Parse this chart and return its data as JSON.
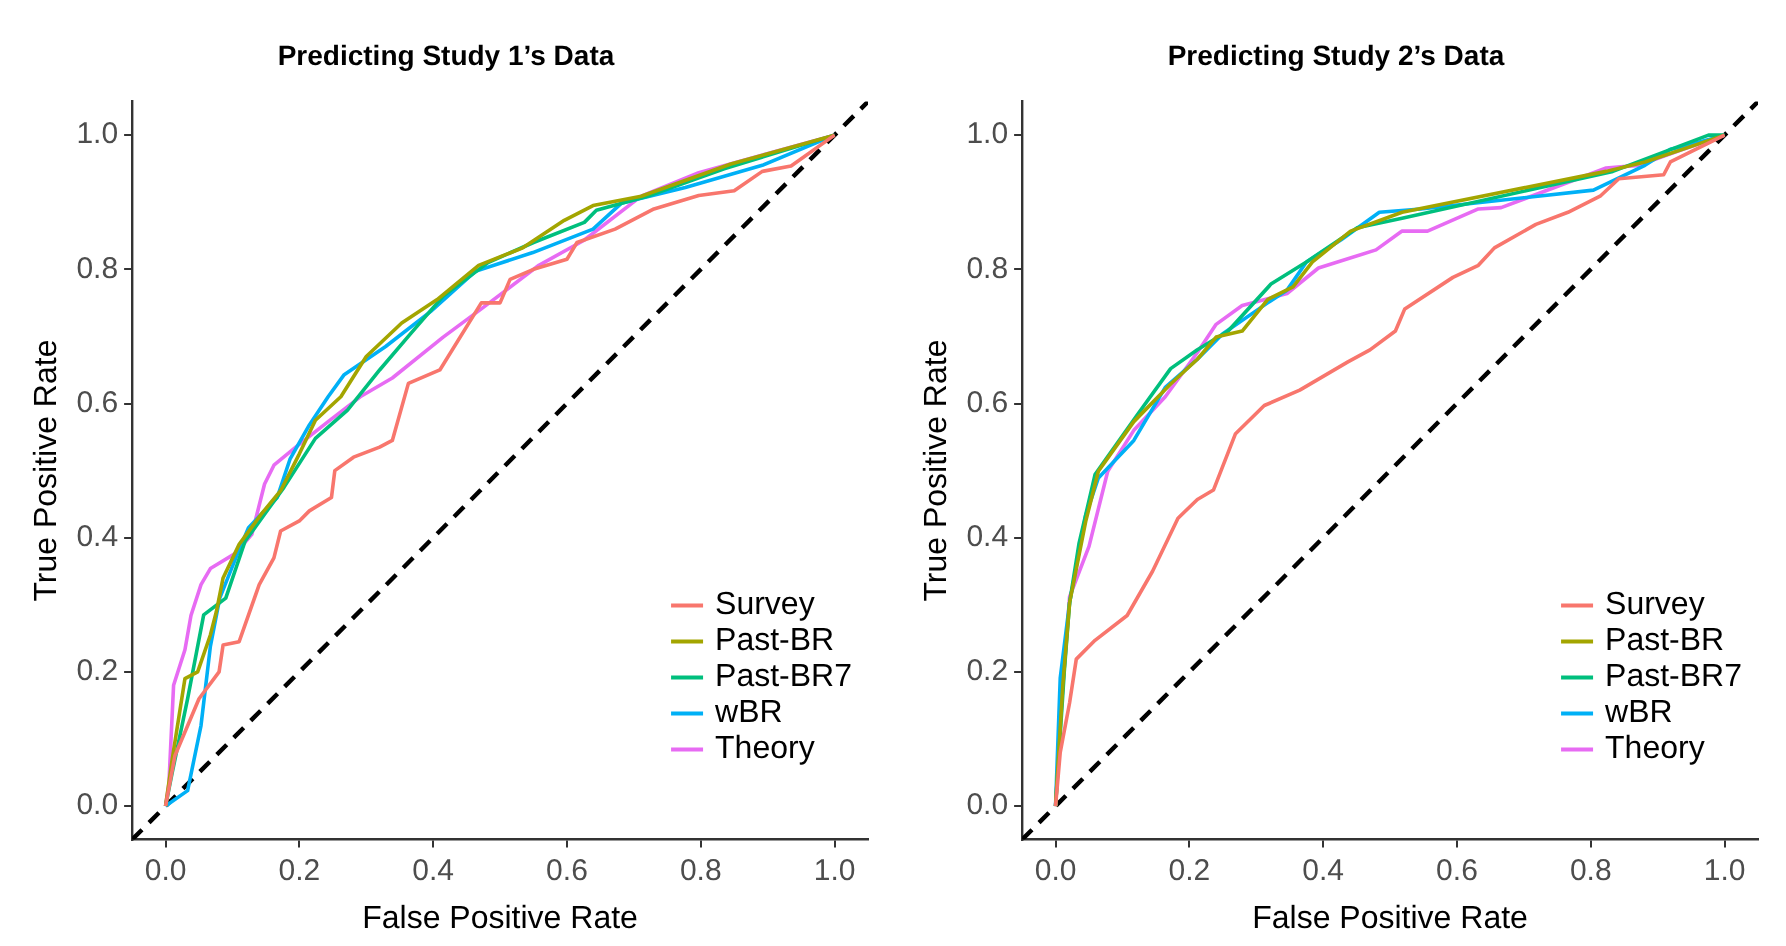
{
  "chart_data": [
    {
      "type": "line",
      "title": "Predicting Study 1’s Data",
      "xlabel": "False Positive Rate",
      "ylabel": "True Positive Rate",
      "xlim": [
        -0.05,
        1.05
      ],
      "ylim": [
        -0.05,
        1.05
      ],
      "xticks": [
        {
          "value": 0,
          "label": "0.0"
        },
        {
          "value": 0.2,
          "label": "0.2"
        },
        {
          "value": 0.4,
          "label": "0.4"
        },
        {
          "value": 0.6,
          "label": "0.6"
        },
        {
          "value": 0.8,
          "label": "0.8"
        },
        {
          "value": 1,
          "label": "1.0"
        }
      ],
      "yticks": [
        {
          "value": 0,
          "label": "0.0"
        },
        {
          "value": 0.2,
          "label": "0.2"
        },
        {
          "value": 0.4,
          "label": "0.4"
        },
        {
          "value": 0.6,
          "label": "0.6"
        },
        {
          "value": 0.8,
          "label": "0.8"
        },
        {
          "value": 1,
          "label": "1.0"
        }
      ],
      "grid": false,
      "legend": "bottom right",
      "marker": "none",
      "line_style": "solid",
      "series": [
        {
          "name": "Survey",
          "color": "#f8766d",
          "x": [
            0,
            0.014,
            0.05,
            0.08,
            0.086,
            0.11,
            0.14,
            0.162,
            0.172,
            0.2,
            0.215,
            0.248,
            0.253,
            0.281,
            0.32,
            0.339,
            0.363,
            0.41,
            0.472,
            0.5,
            0.515,
            0.55,
            0.6,
            0.615,
            0.672,
            0.73,
            0.797,
            0.85,
            0.892,
            0.935,
            1
          ],
          "values": [
            0,
            0.075,
            0.16,
            0.2,
            0.24,
            0.245,
            0.33,
            0.37,
            0.41,
            0.425,
            0.44,
            0.46,
            0.5,
            0.52,
            0.535,
            0.545,
            0.63,
            0.65,
            0.75,
            0.75,
            0.785,
            0.8,
            0.815,
            0.84,
            0.86,
            0.89,
            0.91,
            0.917,
            0.946,
            0.954,
            1
          ]
        },
        {
          "name": "Past-BR",
          "color": "#a3a500",
          "x": [
            0,
            0.01,
            0.029,
            0.048,
            0.067,
            0.076,
            0.086,
            0.11,
            0.143,
            0.172,
            0.2,
            0.224,
            0.262,
            0.3,
            0.353,
            0.406,
            0.468,
            0.534,
            0.596,
            0.639,
            0.711,
            0.845,
            1
          ],
          "values": [
            0,
            0.07,
            0.19,
            0.2,
            0.255,
            0.29,
            0.34,
            0.39,
            0.435,
            0.47,
            0.525,
            0.575,
            0.61,
            0.67,
            0.72,
            0.755,
            0.806,
            0.832,
            0.873,
            0.895,
            0.909,
            0.957,
            1
          ]
        },
        {
          "name": "Past-BR7",
          "color": "#00bf7d",
          "x": [
            0,
            0.01,
            0.033,
            0.057,
            0.09,
            0.119,
            0.148,
            0.177,
            0.224,
            0.272,
            0.32,
            0.367,
            0.415,
            0.482,
            0.55,
            0.626,
            0.644,
            0.72,
            0.835,
            1
          ],
          "values": [
            0,
            0.05,
            0.16,
            0.285,
            0.31,
            0.395,
            0.435,
            0.475,
            0.548,
            0.59,
            0.65,
            0.705,
            0.76,
            0.81,
            0.84,
            0.87,
            0.888,
            0.909,
            0.95,
            1
          ]
        },
        {
          "name": "wBR",
          "color": "#00b0f6",
          "x": [
            0,
            0.033,
            0.053,
            0.067,
            0.081,
            0.105,
            0.124,
            0.167,
            0.186,
            0.215,
            0.243,
            0.267,
            0.329,
            0.396,
            0.463,
            0.549,
            0.639,
            0.682,
            0.777,
            0.892,
            1
          ],
          "values": [
            0,
            0.023,
            0.12,
            0.238,
            0.31,
            0.37,
            0.415,
            0.46,
            0.517,
            0.568,
            0.61,
            0.643,
            0.685,
            0.737,
            0.797,
            0.825,
            0.86,
            0.899,
            0.922,
            0.955,
            1
          ]
        },
        {
          "name": "Theory",
          "color": "#e76bf3",
          "x": [
            0,
            0.005,
            0.012,
            0.029,
            0.038,
            0.053,
            0.067,
            0.105,
            0.129,
            0.148,
            0.162,
            0.196,
            0.243,
            0.291,
            0.339,
            0.415,
            0.472,
            0.558,
            0.625,
            0.711,
            0.797,
            1
          ],
          "values": [
            0,
            0.033,
            0.18,
            0.233,
            0.284,
            0.33,
            0.354,
            0.377,
            0.405,
            0.48,
            0.508,
            0.536,
            0.573,
            0.61,
            0.638,
            0.699,
            0.741,
            0.806,
            0.843,
            0.909,
            0.944,
            1
          ]
        },
        {
          "color": "#000000",
          "line_style": "dashed",
          "x": [
            -0.05,
            1.05
          ],
          "values": [
            -0.05,
            1.05
          ]
        }
      ]
    },
    {
      "type": "line",
      "title": "Predicting Study 2’s Data",
      "xlabel": "False Positive Rate",
      "ylabel": "True Positive Rate",
      "xlim": [
        -0.05,
        1.05
      ],
      "ylim": [
        -0.05,
        1.05
      ],
      "xticks": [
        {
          "value": 0,
          "label": "0.0"
        },
        {
          "value": 0.2,
          "label": "0.2"
        },
        {
          "value": 0.4,
          "label": "0.4"
        },
        {
          "value": 0.6,
          "label": "0.6"
        },
        {
          "value": 0.8,
          "label": "0.8"
        },
        {
          "value": 1,
          "label": "1.0"
        }
      ],
      "yticks": [
        {
          "value": 0,
          "label": "0.0"
        },
        {
          "value": 0.2,
          "label": "0.2"
        },
        {
          "value": 0.4,
          "label": "0.4"
        },
        {
          "value": 0.6,
          "label": "0.6"
        },
        {
          "value": 0.8,
          "label": "0.8"
        },
        {
          "value": 1,
          "label": "1.0"
        }
      ],
      "grid": false,
      "legend": "bottom right",
      "marker": "none",
      "line_style": "solid",
      "series": [
        {
          "name": "Survey",
          "color": "#f8766d",
          "x": [
            0,
            0.007,
            0.021,
            0.031,
            0.059,
            0.107,
            0.145,
            0.183,
            0.212,
            0.236,
            0.269,
            0.312,
            0.365,
            0.437,
            0.47,
            0.508,
            0.522,
            0.594,
            0.632,
            0.656,
            0.718,
            0.766,
            0.814,
            0.842,
            0.909,
            0.919,
            1
          ],
          "values": [
            0,
            0.08,
            0.154,
            0.219,
            0.247,
            0.284,
            0.35,
            0.429,
            0.457,
            0.471,
            0.555,
            0.597,
            0.62,
            0.662,
            0.68,
            0.708,
            0.741,
            0.788,
            0.806,
            0.832,
            0.867,
            0.885,
            0.909,
            0.935,
            0.941,
            0.96,
            1
          ]
        },
        {
          "name": "Past-BR",
          "color": "#a3a500",
          "x": [
            0,
            0.011,
            0.021,
            0.045,
            0.064,
            0.117,
            0.172,
            0.212,
            0.24,
            0.279,
            0.317,
            0.355,
            0.384,
            0.441,
            0.518,
            0.823,
            0.881,
            1
          ],
          "values": [
            0,
            0.182,
            0.303,
            0.424,
            0.499,
            0.573,
            0.629,
            0.666,
            0.699,
            0.708,
            0.755,
            0.774,
            0.811,
            0.857,
            0.885,
            0.946,
            0.96,
            1
          ]
        },
        {
          "name": "Past-BR7",
          "color": "#00bf7d",
          "x": [
            0,
            0.013,
            0.021,
            0.035,
            0.059,
            0.122,
            0.172,
            0.212,
            0.258,
            0.322,
            0.375,
            0.451,
            0.518,
            0.833,
            0.976,
            1
          ],
          "values": [
            0,
            0.2,
            0.303,
            0.391,
            0.494,
            0.583,
            0.652,
            0.68,
            0.708,
            0.778,
            0.811,
            0.862,
            0.876,
            0.946,
            1,
            1
          ]
        },
        {
          "name": "wBR",
          "color": "#00b0f6",
          "x": [
            0,
            0.007,
            0.021,
            0.045,
            0.064,
            0.117,
            0.164,
            0.212,
            0.25,
            0.317,
            0.346,
            0.375,
            0.427,
            0.484,
            0.546,
            0.804,
            0.881,
            0.919,
            0.938,
            1
          ],
          "values": [
            0,
            0.191,
            0.303,
            0.433,
            0.489,
            0.545,
            0.624,
            0.666,
            0.704,
            0.75,
            0.769,
            0.811,
            0.844,
            0.885,
            0.89,
            0.918,
            0.955,
            0.979,
            0.983,
            1
          ]
        },
        {
          "name": "Theory",
          "color": "#e76bf3",
          "x": [
            0,
            0.007,
            0.021,
            0.05,
            0.078,
            0.117,
            0.164,
            0.212,
            0.24,
            0.279,
            0.346,
            0.393,
            0.479,
            0.518,
            0.556,
            0.632,
            0.666,
            0.823,
            0.871,
            0.938,
            1
          ],
          "values": [
            0,
            0.126,
            0.312,
            0.387,
            0.499,
            0.56,
            0.61,
            0.676,
            0.718,
            0.746,
            0.764,
            0.802,
            0.829,
            0.857,
            0.857,
            0.89,
            0.892,
            0.951,
            0.955,
            0.979,
            1
          ]
        },
        {
          "color": "#000000",
          "line_style": "dashed",
          "x": [
            -0.05,
            1.05
          ],
          "values": [
            -0.05,
            1.05
          ]
        }
      ]
    }
  ]
}
